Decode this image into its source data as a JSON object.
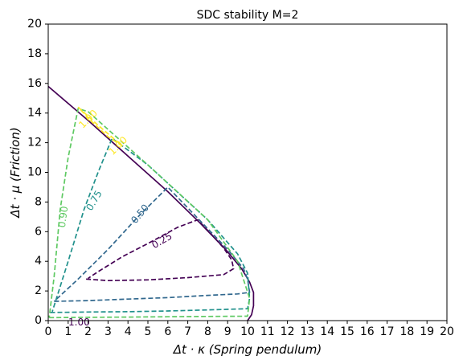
{
  "chart_data": {
    "type": "line",
    "title": "SDC stability  M=2",
    "xlabel": "Δt · κ (Spring pendulum)",
    "ylabel": "Δt · μ (Friction)",
    "xlim": [
      0,
      20
    ],
    "ylim": [
      0,
      20
    ],
    "x_ticks": [
      0,
      1,
      2,
      3,
      4,
      5,
      6,
      7,
      8,
      9,
      10,
      11,
      12,
      13,
      14,
      15,
      16,
      17,
      18,
      19,
      20
    ],
    "y_ticks": [
      0,
      2,
      4,
      6,
      8,
      10,
      12,
      14,
      16,
      18,
      20
    ],
    "grid": false,
    "series": [
      {
        "label": "",
        "color": "#440154",
        "dash": false,
        "x": [
          0.0,
          2.0,
          4.0,
          6.0,
          7.6,
          8.9,
          9.7,
          10.1,
          10.3,
          10.3,
          10.2,
          10.0
        ],
        "y": [
          15.8,
          13.5,
          11.1,
          8.7,
          6.6,
          4.8,
          3.5,
          2.6,
          1.9,
          1.0,
          0.4,
          0.0
        ]
      },
      {
        "label": "0.25",
        "color": "#440154",
        "dash": true,
        "x": [
          1.9,
          3.0,
          5.0,
          7.0,
          8.8,
          9.3,
          9.2,
          8.8,
          8.2,
          7.5,
          6.5,
          5.0,
          3.7,
          2.5,
          2.0
        ],
        "y": [
          2.8,
          2.7,
          2.75,
          2.9,
          3.1,
          3.5,
          4.1,
          4.9,
          5.8,
          6.8,
          6.3,
          5.2,
          4.3,
          3.3,
          2.85
        ]
      },
      {
        "label": "0.50",
        "color": "#31688e",
        "dash": true,
        "x": [
          0.3,
          2.0,
          4.0,
          6.0,
          8.0,
          9.5,
          10.1,
          10.0,
          9.8,
          9.0,
          8.0,
          6.0,
          4.5,
          3.0,
          1.5,
          0.3
        ],
        "y": [
          1.3,
          1.35,
          1.45,
          1.55,
          1.7,
          1.8,
          1.9,
          2.8,
          3.5,
          4.8,
          6.2,
          9.0,
          7.0,
          4.8,
          2.8,
          1.3
        ]
      },
      {
        "label": "0.75",
        "color": "#21918c",
        "dash": true,
        "x": [
          0.1,
          2.0,
          4.0,
          6.0,
          8.0,
          10.0,
          10.1,
          10.0,
          9.5,
          8.0,
          5.0,
          3.2,
          2.5,
          1.8,
          1.0,
          0.2
        ],
        "y": [
          0.55,
          0.58,
          0.6,
          0.65,
          0.72,
          0.8,
          1.5,
          3.2,
          4.5,
          6.8,
          10.5,
          12.3,
          10.0,
          7.5,
          4.0,
          0.6
        ]
      },
      {
        "label": "0.90",
        "color": "#5ec962",
        "dash": true,
        "x": [
          0.05,
          2.0,
          4.0,
          6.0,
          8.0,
          10.0,
          10.1,
          9.5,
          8.0,
          5.0,
          2.0,
          1.5,
          1.0,
          0.6,
          0.3,
          0.05
        ],
        "y": [
          0.2,
          0.22,
          0.24,
          0.26,
          0.28,
          0.3,
          1.5,
          4.0,
          6.8,
          10.5,
          14.1,
          14.3,
          11.0,
          7.5,
          3.0,
          0.2
        ]
      },
      {
        "label": "1.00",
        "color": "#fde725",
        "dash": true,
        "x": [
          1.5,
          2.4,
          3.0,
          3.7,
          3.0,
          2.2,
          1.5
        ],
        "y": [
          14.4,
          13.3,
          12.6,
          11.8,
          12.4,
          13.4,
          14.4
        ]
      }
    ],
    "contour_labels": [
      {
        "text": "0.25",
        "x": 5.7,
        "y": 5.4,
        "angle": -30,
        "color": "#440154"
      },
      {
        "text": "0.50",
        "x": 4.6,
        "y": 7.2,
        "angle": -50,
        "color": "#31688e"
      },
      {
        "text": "0.75",
        "x": 2.3,
        "y": 8.1,
        "angle": -60,
        "color": "#21918c"
      },
      {
        "text": "0.90",
        "x": 0.75,
        "y": 7.0,
        "angle": -82,
        "color": "#5ec962"
      },
      {
        "text": "1.00",
        "x": 2.0,
        "y": 13.6,
        "angle": -45,
        "color": "#fde725"
      },
      {
        "text": "1.00",
        "x": 3.5,
        "y": 11.8,
        "angle": -45,
        "color": "#fde725"
      },
      {
        "text": "1.00",
        "x": 1.55,
        "y": -0.1,
        "angle": 0,
        "color": "#440154"
      }
    ]
  }
}
